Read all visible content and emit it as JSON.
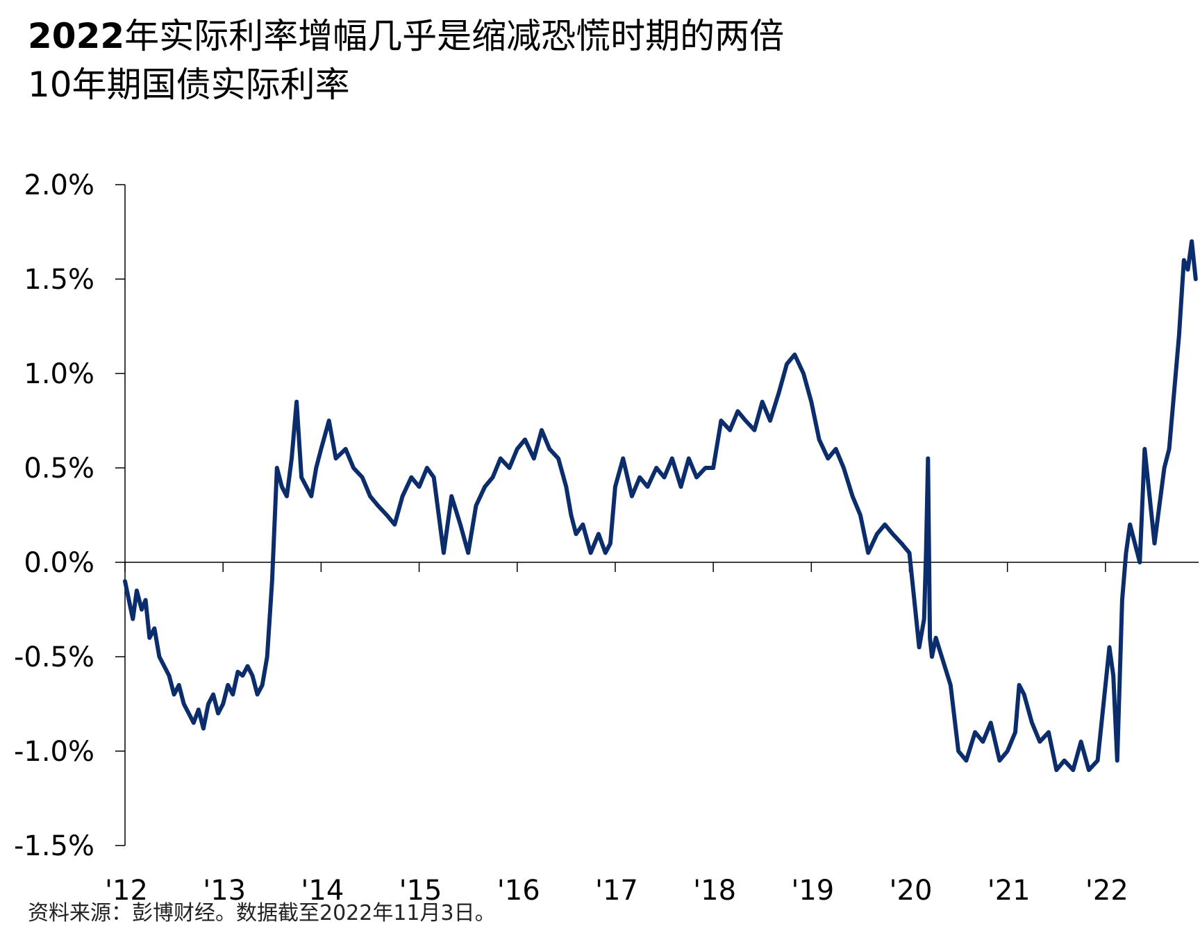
{
  "header": {
    "title_year": "2022",
    "title_rest": "年实际利率增幅几乎是缩减恐慌时期的两倍",
    "subtitle": "10年期国债实际利率"
  },
  "footer": {
    "source": "资料来源：彭博财经。数据截至2022年11月3日。"
  },
  "chart_data": {
    "type": "line",
    "title": "2022年实际利率增幅几乎是缩减恐慌时期的两倍",
    "subtitle": "10年期国债实际利率",
    "xlabel": "",
    "ylabel": "",
    "ylim": [
      -1.5,
      2.0
    ],
    "xlim": [
      2012.0,
      2022.95
    ],
    "y_ticks": [
      {
        "value": 2.0,
        "label": "2.0%"
      },
      {
        "value": 1.5,
        "label": "1.5%"
      },
      {
        "value": 1.0,
        "label": "1.0%"
      },
      {
        "value": 0.5,
        "label": "0.5%"
      },
      {
        "value": 0.0,
        "label": "0.0%"
      },
      {
        "value": -0.5,
        "label": "-0.5%"
      },
      {
        "value": -1.0,
        "label": "-1.0%"
      },
      {
        "value": -1.5,
        "label": "-1.5%"
      }
    ],
    "x_ticks": [
      {
        "value": 2012,
        "label": "'12"
      },
      {
        "value": 2013,
        "label": "'13"
      },
      {
        "value": 2014,
        "label": "'14"
      },
      {
        "value": 2015,
        "label": "'15"
      },
      {
        "value": 2016,
        "label": "'16"
      },
      {
        "value": 2017,
        "label": "'17"
      },
      {
        "value": 2018,
        "label": "'18"
      },
      {
        "value": 2019,
        "label": "'19"
      },
      {
        "value": 2020,
        "label": "'20"
      },
      {
        "value": 2021,
        "label": "'21"
      },
      {
        "value": 2022,
        "label": "'22"
      }
    ],
    "grid": false,
    "legend": "none",
    "line_color": "#0b2d6b",
    "series": [
      {
        "x": [
          2012.0,
          2012.04,
          2012.08,
          2012.12,
          2012.17,
          2012.21,
          2012.25,
          2012.3,
          2012.35,
          2012.4,
          2012.45,
          2012.5,
          2012.55,
          2012.6,
          2012.65,
          2012.7,
          2012.75,
          2012.8,
          2012.85,
          2012.9,
          2012.95,
          2013.0,
          2013.05,
          2013.1,
          2013.15,
          2013.2,
          2013.25,
          2013.3,
          2013.35,
          2013.4,
          2013.45,
          2013.5,
          2013.55,
          2013.6,
          2013.65,
          2013.7,
          2013.75,
          2013.8,
          2013.85,
          2013.9,
          2013.95,
          2014.0,
          2014.08,
          2014.15,
          2014.25,
          2014.33,
          2014.42,
          2014.5,
          2014.58,
          2014.67,
          2014.75,
          2014.83,
          2014.92,
          2015.0,
          2015.08,
          2015.15,
          2015.25,
          2015.33,
          2015.42,
          2015.5,
          2015.58,
          2015.67,
          2015.75,
          2015.83,
          2015.92,
          2016.0,
          2016.08,
          2016.17,
          2016.25,
          2016.33,
          2016.42,
          2016.5,
          2016.55,
          2016.6,
          2016.67,
          2016.75,
          2016.83,
          2016.9,
          2016.95,
          2017.0,
          2017.08,
          2017.17,
          2017.25,
          2017.33,
          2017.42,
          2017.5,
          2017.58,
          2017.67,
          2017.75,
          2017.83,
          2017.92,
          2018.0,
          2018.08,
          2018.17,
          2018.25,
          2018.33,
          2018.42,
          2018.5,
          2018.58,
          2018.67,
          2018.75,
          2018.83,
          2018.92,
          2019.0,
          2019.08,
          2019.17,
          2019.25,
          2019.33,
          2019.42,
          2019.5,
          2019.58,
          2019.67,
          2019.75,
          2019.83,
          2019.92,
          2020.0,
          2020.05,
          2020.1,
          2020.15,
          2020.17,
          2020.19,
          2020.21,
          2020.23,
          2020.27,
          2020.33,
          2020.42,
          2020.5,
          2020.58,
          2020.67,
          2020.75,
          2020.83,
          2020.92,
          2021.0,
          2021.08,
          2021.12,
          2021.17,
          2021.25,
          2021.33,
          2021.42,
          2021.5,
          2021.58,
          2021.67,
          2021.75,
          2021.83,
          2021.92,
          2022.0,
          2022.04,
          2022.08,
          2022.12,
          2022.17,
          2022.21,
          2022.25,
          2022.3,
          2022.35,
          2022.4,
          2022.45,
          2022.5,
          2022.55,
          2022.6,
          2022.65,
          2022.7,
          2022.75,
          2022.8,
          2022.84,
          2022.88,
          2022.92
        ],
        "values": [
          -0.1,
          -0.2,
          -0.3,
          -0.15,
          -0.25,
          -0.2,
          -0.4,
          -0.35,
          -0.5,
          -0.55,
          -0.6,
          -0.7,
          -0.65,
          -0.75,
          -0.8,
          -0.85,
          -0.78,
          -0.88,
          -0.75,
          -0.7,
          -0.8,
          -0.75,
          -0.65,
          -0.7,
          -0.58,
          -0.6,
          -0.55,
          -0.6,
          -0.7,
          -0.65,
          -0.5,
          -0.1,
          0.5,
          0.4,
          0.35,
          0.55,
          0.85,
          0.45,
          0.4,
          0.35,
          0.5,
          0.6,
          0.75,
          0.55,
          0.6,
          0.5,
          0.45,
          0.35,
          0.3,
          0.25,
          0.2,
          0.35,
          0.45,
          0.4,
          0.5,
          0.45,
          0.05,
          0.35,
          0.2,
          0.05,
          0.3,
          0.4,
          0.45,
          0.55,
          0.5,
          0.6,
          0.65,
          0.55,
          0.7,
          0.6,
          0.55,
          0.4,
          0.25,
          0.15,
          0.2,
          0.05,
          0.15,
          0.05,
          0.1,
          0.4,
          0.55,
          0.35,
          0.45,
          0.4,
          0.5,
          0.45,
          0.55,
          0.4,
          0.55,
          0.45,
          0.5,
          0.5,
          0.75,
          0.7,
          0.8,
          0.75,
          0.7,
          0.85,
          0.75,
          0.9,
          1.05,
          1.1,
          1.0,
          0.85,
          0.65,
          0.55,
          0.6,
          0.5,
          0.35,
          0.25,
          0.05,
          0.15,
          0.2,
          0.15,
          0.1,
          0.05,
          -0.2,
          -0.45,
          -0.3,
          0.05,
          0.55,
          -0.4,
          -0.5,
          -0.4,
          -0.5,
          -0.65,
          -1.0,
          -1.05,
          -0.9,
          -0.95,
          -0.85,
          -1.05,
          -1.0,
          -0.9,
          -0.65,
          -0.7,
          -0.85,
          -0.95,
          -0.9,
          -1.1,
          -1.05,
          -1.1,
          -0.95,
          -1.1,
          -1.05,
          -0.65,
          -0.45,
          -0.6,
          -1.05,
          -0.2,
          0.05,
          0.2,
          0.1,
          0.0,
          0.6,
          0.35,
          0.1,
          0.3,
          0.5,
          0.6,
          0.9,
          1.2,
          1.6,
          1.55,
          1.7,
          1.5
        ]
      }
    ]
  }
}
